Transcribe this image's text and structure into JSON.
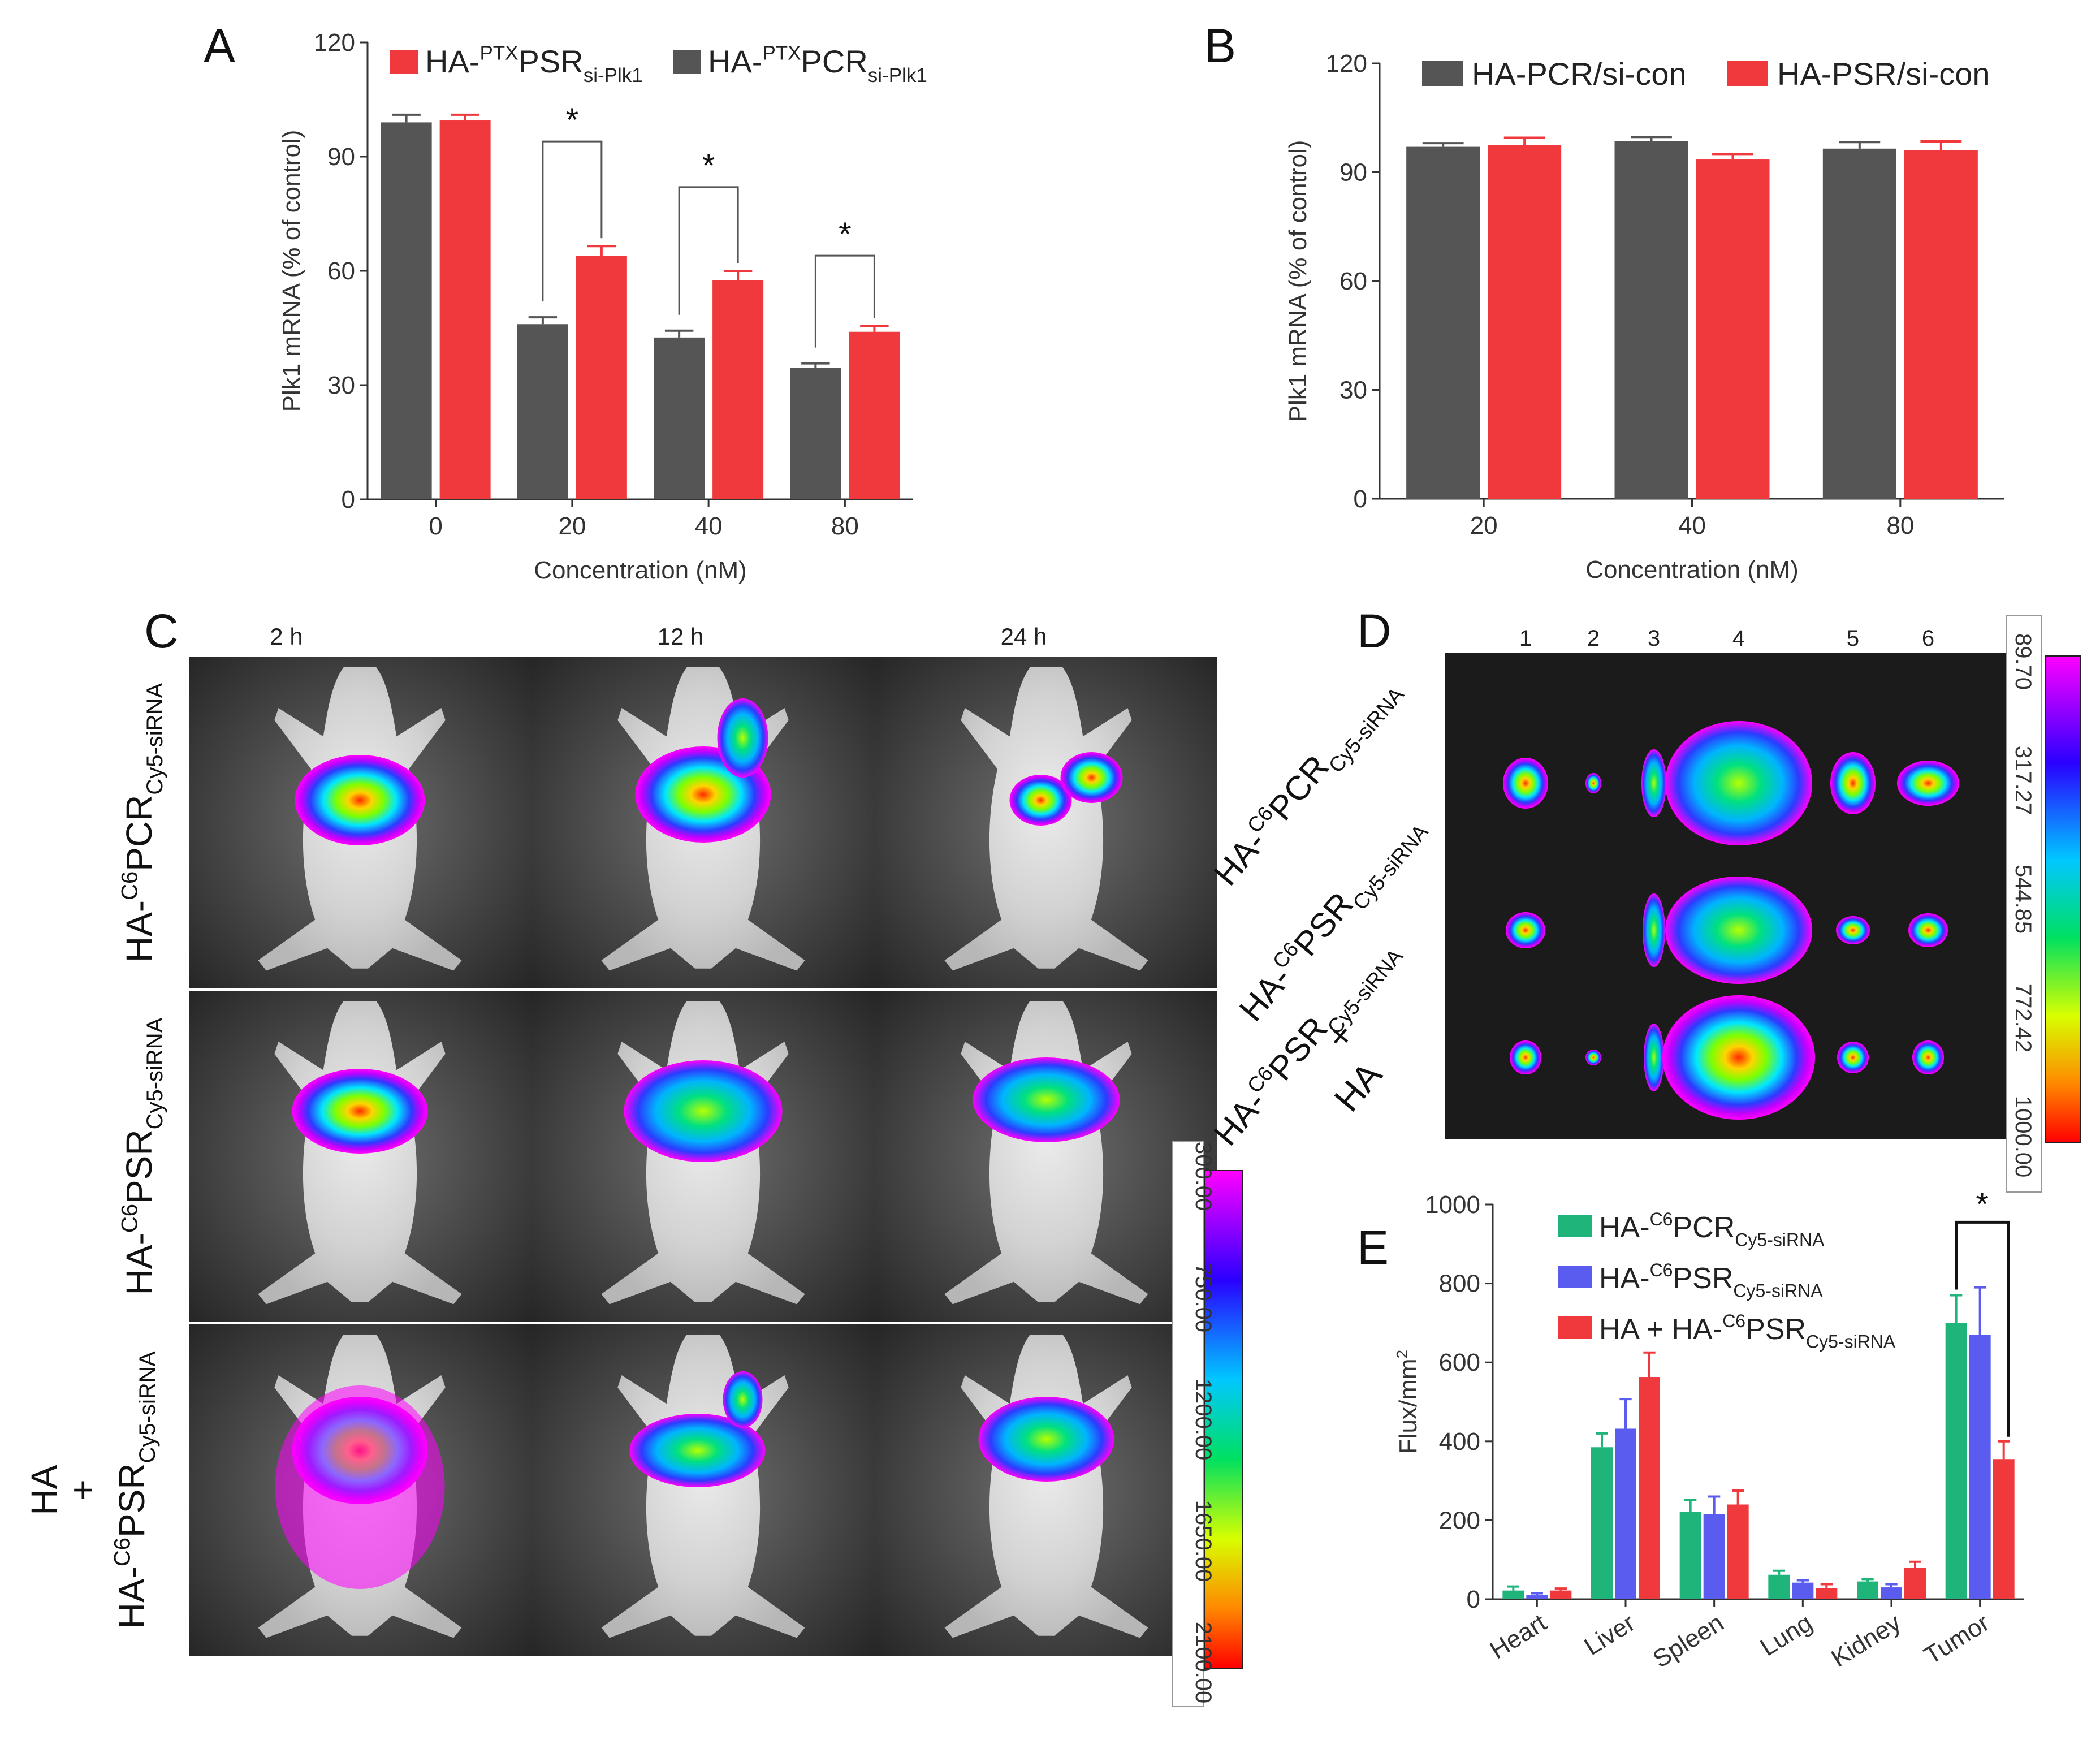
{
  "panels": {
    "A": {
      "letter": "A"
    },
    "B": {
      "letter": "B"
    },
    "C": {
      "letter": "C"
    },
    "D": {
      "letter": "D"
    },
    "E": {
      "letter": "E"
    }
  },
  "chart_data": [
    {
      "id": "A",
      "type": "bar",
      "ylabel": "Plk1 mRNA (% of control)",
      "xlabel": "Concentration (nM)",
      "ylim": [
        0,
        120
      ],
      "yticks": [
        0,
        30,
        60,
        90,
        120
      ],
      "categories": [
        "0",
        "20",
        "40",
        "80"
      ],
      "colors": {
        "HA-PTXPCR": "#555555",
        "HA-PTXPSR": "#f0393d"
      },
      "legend": [
        {
          "prefix": "HA-",
          "sup": "PTX",
          "main": "PSR",
          "sub": "si-Plk1",
          "series": "HA-PTXPSR"
        },
        {
          "prefix": "HA-",
          "sup": "PTX",
          "main": "PCR",
          "sub": "si-Plk1",
          "series": "HA-PTXPCR"
        }
      ],
      "series": [
        {
          "name": "HA-PTXPCR",
          "values": [
            99,
            46,
            42.5,
            34.5
          ],
          "errors": [
            2,
            1.8,
            1.8,
            1.2
          ]
        },
        {
          "name": "HA-PTXPSR",
          "values": [
            99.5,
            64,
            57.5,
            44
          ],
          "errors": [
            1.5,
            2.5,
            2.5,
            1.5
          ]
        }
      ],
      "significance": [
        {
          "category": "20",
          "label": "*",
          "ybracket": 94
        },
        {
          "category": "40",
          "label": "*",
          "ybracket": 82
        },
        {
          "category": "80",
          "label": "*",
          "ybracket": 64
        }
      ]
    },
    {
      "id": "B",
      "type": "bar",
      "ylabel": "Plk1 mRNA (% of control)",
      "xlabel": "Concentration (nM)",
      "ylim": [
        0,
        120
      ],
      "yticks": [
        0,
        30,
        60,
        90,
        120
      ],
      "categories": [
        "20",
        "40",
        "80"
      ],
      "colors": {
        "HA-PCR/si-con": "#555555",
        "HA-PSR/si-con": "#f0393d"
      },
      "legend": [
        {
          "text": "HA-PCR/si-con",
          "series": "HA-PCR/si-con"
        },
        {
          "text": "HA-PSR/si-con",
          "series": "HA-PSR/si-con"
        }
      ],
      "series": [
        {
          "name": "HA-PCR/si-con",
          "values": [
            97,
            98.5,
            96.5
          ],
          "errors": [
            1,
            1.2,
            1.8
          ]
        },
        {
          "name": "HA-PSR/si-con",
          "values": [
            97.5,
            93.5,
            96
          ],
          "errors": [
            2,
            1.5,
            2.5
          ]
        }
      ]
    },
    {
      "id": "C",
      "type": "image-grid",
      "timepoints": [
        "2 h",
        "12 h",
        "24 h"
      ],
      "rows": [
        {
          "prefix": "HA-",
          "sup": "C6",
          "main": "PCR",
          "sub": "Cy5-siRNA"
        },
        {
          "prefix": "HA-",
          "sup": "C6",
          "main": "PSR",
          "sub": "Cy5-siRNA"
        },
        {
          "top": "HA",
          "plus": "+",
          "prefix": "HA-",
          "sup": "C6",
          "main": "PSR",
          "sub": "Cy5-siRNA"
        }
      ],
      "colorbar": [
        "300.00",
        "750.00",
        "1200.00",
        "1650.00",
        "2100.00"
      ]
    },
    {
      "id": "D",
      "type": "image-grid",
      "organ_numbers": [
        "1",
        "2",
        "3",
        "4",
        "5",
        "6"
      ],
      "rows": [
        {
          "prefix": "HA-",
          "sup": "C6",
          "main": "PCR",
          "sub": "Cy5-siRNA"
        },
        {
          "prefix": "HA-",
          "sup": "C6",
          "main": "PSR",
          "sub": "Cy5-siRNA"
        },
        {
          "prefix": "HA-",
          "sup": "C6",
          "main": "PSR",
          "sub": "Cy5-siRNA",
          "plus": "+",
          "bottom": "HA"
        }
      ],
      "colorbar": [
        "89.70",
        "317.27",
        "544.85",
        "772.42",
        "1000.00"
      ]
    },
    {
      "id": "E",
      "type": "bar",
      "ylabel": "Flux/mm",
      "ylabel_sup": "2",
      "xlabel": "",
      "ylim": [
        0,
        1000
      ],
      "yticks": [
        0,
        200,
        400,
        600,
        800,
        1000
      ],
      "categories": [
        "Heart",
        "Liver",
        "Spleen",
        "Lung",
        "Kidney",
        "Tumor"
      ],
      "colors": {
        "HA-C6PCR": "#1fb57a",
        "HA-C6PSR": "#5a5cf0",
        "HA + HA-C6PSR": "#f0393d"
      },
      "legend": [
        {
          "prefix": "HA-",
          "sup": "C6",
          "main": "PCR",
          "sub": "Cy5-siRNA",
          "series": "HA-C6PCR"
        },
        {
          "prefix": "HA-",
          "sup": "C6",
          "main": "PSR",
          "sub": "Cy5-siRNA",
          "series": "HA-C6PSR"
        },
        {
          "prefix": "HA + HA-",
          "sup": "C6",
          "main": "PSR",
          "sub": "Cy5-siRNA",
          "series": "HA + HA-C6PSR"
        }
      ],
      "series": [
        {
          "name": "HA-C6PCR",
          "values": [
            22,
            385,
            222,
            62,
            45,
            700
          ],
          "errors": [
            10,
            35,
            30,
            10,
            6,
            70
          ]
        },
        {
          "name": "HA-C6PSR",
          "values": [
            10,
            432,
            215,
            42,
            30,
            670
          ],
          "errors": [
            5,
            75,
            45,
            6,
            8,
            120
          ]
        },
        {
          "name": "HA + HA-C6PSR",
          "values": [
            22,
            563,
            240,
            28,
            80,
            355
          ],
          "errors": [
            5,
            62,
            35,
            10,
            15,
            45
          ]
        }
      ],
      "significance": [
        {
          "category": "Tumor",
          "label": "*"
        }
      ]
    }
  ]
}
